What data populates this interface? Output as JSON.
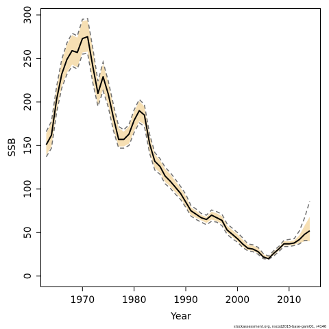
{
  "chart_data": {
    "type": "line",
    "xlabel": "Year",
    "ylabel": "SSB",
    "xlim": [
      1962,
      2016
    ],
    "ylim": [
      -12,
      307
    ],
    "xticks": [
      1970,
      1980,
      1990,
      2000,
      2010
    ],
    "yticks": [
      0,
      50,
      100,
      150,
      200,
      250,
      300
    ],
    "grid": false,
    "x": [
      1963,
      1964,
      1965,
      1966,
      1967,
      1968,
      1969,
      1970,
      1971,
      1972,
      1973,
      1974,
      1975,
      1976,
      1977,
      1978,
      1979,
      1980,
      1981,
      1982,
      1983,
      1984,
      1985,
      1986,
      1987,
      1988,
      1989,
      1990,
      1991,
      1992,
      1993,
      1994,
      1995,
      1996,
      1997,
      1998,
      1999,
      2000,
      2001,
      2002,
      2003,
      2004,
      2005,
      2006,
      2007,
      2008,
      2009,
      2010,
      2011,
      2012,
      2013,
      2014
    ],
    "series": [
      {
        "role": "estimate",
        "color": "#000000",
        "values": [
          151,
          162,
          203,
          232,
          249,
          259,
          257,
          273,
          275,
          241,
          210,
          229,
          209,
          182,
          157,
          157,
          163,
          179,
          190,
          185,
          152,
          132,
          126,
          115,
          109,
          102,
          95,
          85,
          75,
          71,
          67,
          65,
          70,
          67,
          64,
          53,
          48,
          43,
          37,
          32,
          31,
          28,
          22,
          20,
          26,
          31,
          37,
          37,
          38,
          42,
          48,
          52
        ]
      },
      {
        "role": "interval-upper",
        "color": "#707070",
        "values": [
          166,
          178,
          218,
          249,
          268,
          279,
          276,
          295,
          296,
          262,
          224,
          246,
          224,
          197,
          172,
          168,
          174,
          191,
          203,
          197,
          163,
          142,
          135,
          125,
          119,
          111,
          103,
          94,
          81,
          77,
          72,
          70,
          76,
          74,
          71,
          60,
          55,
          50,
          44,
          37,
          36,
          33,
          26,
          23,
          29,
          34,
          41,
          42,
          43,
          52,
          67,
          86
        ]
      },
      {
        "role": "interval-lower",
        "color": "#707070",
        "values": [
          137,
          147,
          188,
          216,
          232,
          241,
          238,
          255,
          256,
          222,
          195,
          213,
          194,
          167,
          147,
          147,
          150,
          165,
          176,
          172,
          141,
          122,
          117,
          106,
          101,
          94,
          88,
          79,
          69,
          65,
          62,
          59,
          63,
          62,
          58,
          48,
          43,
          39,
          33,
          29,
          28,
          25,
          20,
          19,
          23,
          28,
          34,
          34,
          35,
          37,
          41,
          41
        ]
      },
      {
        "role": "band-upper",
        "color": "#F6DFB3",
        "values": [
          164,
          176,
          216,
          247,
          266,
          277,
          274,
          293,
          294,
          260,
          222,
          244,
          222,
          195,
          170,
          166,
          172,
          189,
          201,
          195,
          161,
          140,
          133,
          123,
          117,
          109,
          101,
          92,
          79,
          75,
          70,
          68,
          74,
          72,
          69,
          58,
          53,
          48,
          42,
          36,
          35,
          32,
          25,
          22,
          28,
          33,
          40,
          40,
          41,
          47,
          58,
          68
        ]
      },
      {
        "role": "band-lower",
        "color": "#F6DFB3",
        "values": [
          139,
          149,
          190,
          218,
          234,
          243,
          240,
          257,
          258,
          224,
          197,
          215,
          196,
          169,
          149,
          149,
          152,
          167,
          178,
          174,
          143,
          124,
          119,
          108,
          103,
          96,
          90,
          80,
          70,
          67,
          64,
          61,
          65,
          63,
          60,
          50,
          45,
          40,
          34,
          30,
          29,
          26,
          21,
          19,
          24,
          29,
          35,
          35,
          36,
          38,
          40,
          40
        ]
      }
    ]
  },
  "footnote": "stockassessment.org, nscod2015-base-gamQ1, r4146"
}
